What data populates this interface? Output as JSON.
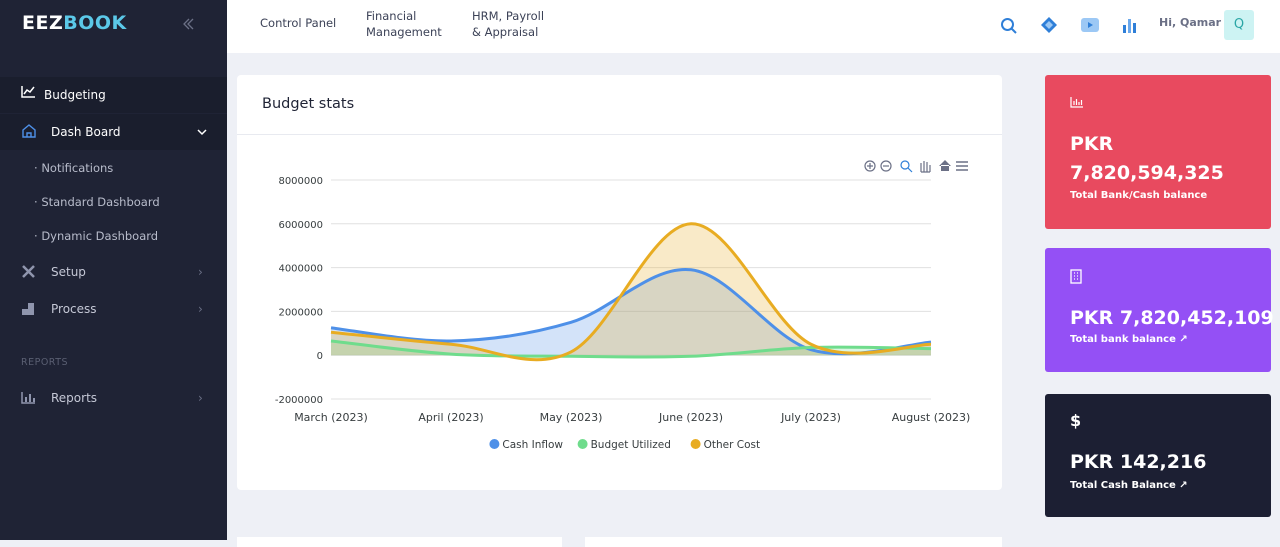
{
  "sidebar": {
    "logo": {
      "first": "EEZ",
      "second": "BOOK"
    },
    "items": [
      "Budgeting",
      "Dash Board"
    ],
    "submenu": [
      "Notifications",
      "Standard Dashboard",
      "Dynamic Dashboard"
    ],
    "more_items": [
      "Setup",
      "Process"
    ],
    "section": "REPORTS",
    "report_item": "Reports"
  },
  "topbar": {
    "nav": [
      "Control Panel",
      "Financial Management",
      "HRM, Payroll & Appraisal"
    ],
    "greeting": "Hi, Qamar",
    "avatar": "Q"
  },
  "card": {
    "title": "Budget stats"
  },
  "chart_data": {
    "type": "area",
    "categories": [
      "March (2023)",
      "April (2023)",
      "May (2023)",
      "June (2023)",
      "July (2023)",
      "August (2023)"
    ],
    "series": [
      {
        "name": "Cash Inflow",
        "color": "#4e90e8",
        "values": [
          1250000,
          650000,
          1500000,
          3900000,
          250000,
          600000
        ]
      },
      {
        "name": "Budget Utilized",
        "color": "#6fdc8c",
        "values": [
          650000,
          50000,
          -50000,
          -50000,
          350000,
          300000
        ]
      },
      {
        "name": "Other Cost",
        "color": "#e8ac22",
        "values": [
          1050000,
          500000,
          150000,
          6000000,
          500000,
          500000
        ]
      }
    ],
    "ylim": [
      -2000000,
      8000000
    ],
    "yticks": [
      -2000000,
      0,
      2000000,
      4000000,
      6000000,
      8000000
    ],
    "grid": true
  },
  "stat_cards": [
    {
      "amount": "PKR 7,820,594,325",
      "label": "Total Bank/Cash balance"
    },
    {
      "amount": "PKR 7,820,452,109",
      "label": "Total bank balance"
    },
    {
      "icon": "$",
      "amount": "PKR 142,216",
      "label": "Total Cash Balance"
    }
  ]
}
